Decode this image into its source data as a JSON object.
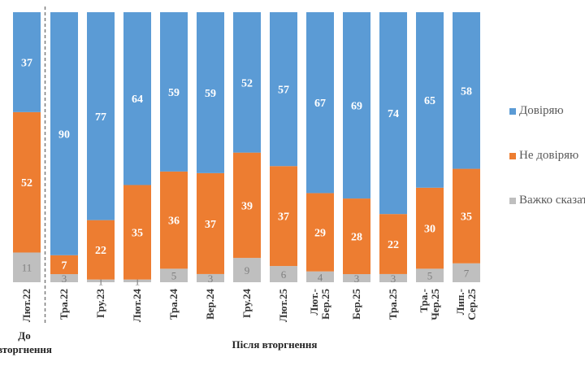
{
  "chart_data": {
    "type": "bar",
    "stacked": true,
    "orientation": "vertical",
    "categories": [
      "Лют.22",
      "Тра.22",
      "Гру.23",
      "Лют.24",
      "Тра.24",
      "Вер.24",
      "Гру.24",
      "Лют.25",
      "Лют.-Бер.25",
      "Бер.25",
      "Тра.25",
      "Тра.-Чер.25",
      "Лип.-Сер.25"
    ],
    "series": [
      {
        "name": "Довіряю",
        "color": "#5b9bd5",
        "values": [
          37,
          90,
          77,
          64,
          59,
          59,
          52,
          57,
          67,
          69,
          74,
          65,
          58
        ]
      },
      {
        "name": "Не довіряю",
        "color": "#ed7d31",
        "values": [
          52,
          7,
          22,
          35,
          36,
          37,
          39,
          37,
          29,
          28,
          22,
          30,
          35
        ]
      },
      {
        "name": "Важко сказати",
        "color": "#bfbfbf",
        "values": [
          11,
          3,
          1,
          1,
          5,
          3,
          9,
          6,
          4,
          3,
          3,
          5,
          7
        ]
      }
    ],
    "groups": [
      {
        "label": "До вторгнення",
        "categories": [
          "Лют.22"
        ]
      },
      {
        "label": "Після вторгнення",
        "categories": [
          "Тра.22",
          "Гру.23",
          "Лют.24",
          "Тра.24",
          "Вер.24",
          "Гру.24",
          "Лют.25",
          "Лют.-Бер.25",
          "Бер.25",
          "Тра.25",
          "Тра.-Чер.25",
          "Лип.-Сер.25"
        ]
      }
    ],
    "ylim": [
      0,
      100
    ],
    "grid": false,
    "legend_position": "right"
  },
  "legend": [
    "Довіряю",
    "Не довіряю",
    "Важко сказати"
  ]
}
